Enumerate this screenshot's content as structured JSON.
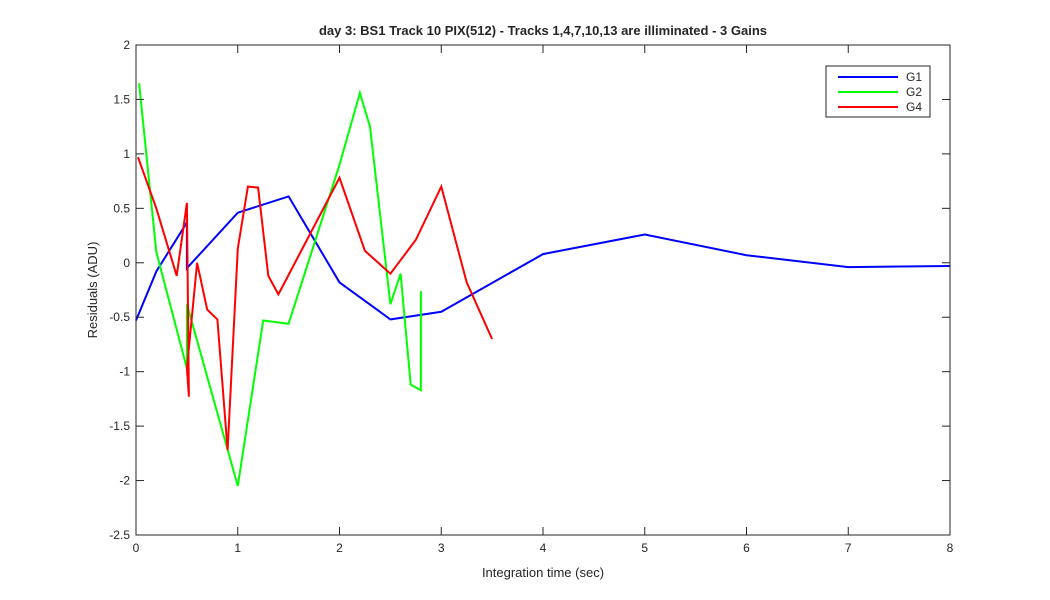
{
  "chart_data": {
    "type": "line",
    "title": "day 3: BS1  Track 10 PIX(512) - Tracks 1,4,7,10,13 are illiminated - 3 Gains",
    "xlabel": "Integration time (sec)",
    "ylabel": "Residuals (ADU)",
    "xlim": [
      0,
      8
    ],
    "ylim": [
      -2.5,
      2
    ],
    "xticks": [
      0,
      1,
      2,
      3,
      4,
      5,
      6,
      7,
      8
    ],
    "yticks": [
      -2.5,
      -2,
      -1.5,
      -1,
      -0.5,
      0,
      0.5,
      1,
      1.5,
      2
    ],
    "xtick_labels": [
      "0",
      "1",
      "2",
      "3",
      "4",
      "5",
      "6",
      "7",
      "8"
    ],
    "ytick_labels": [
      "-2.5",
      "-2",
      "-1.5",
      "-1",
      "-0.5",
      "0",
      "0.5",
      "1",
      "1.5",
      "2"
    ],
    "grid": false,
    "legend_position": "top-right",
    "series": [
      {
        "name": "G1",
        "color": "#0000ff",
        "x": [
          0,
          0.2,
          0.5,
          0.5,
          1,
          1.5,
          2,
          2.5,
          3,
          4,
          5,
          6,
          7,
          8
        ],
        "y": [
          -0.53,
          -0.08,
          0.37,
          -0.05,
          0.46,
          0.61,
          -0.18,
          -0.52,
          -0.45,
          0.08,
          0.26,
          0.07,
          -0.04,
          -0.03
        ]
      },
      {
        "name": "G2",
        "color": "#00ff00",
        "x": [
          0.03,
          0.2,
          0.5,
          0.5,
          1,
          1.25,
          1.5,
          2,
          2.2,
          2.3,
          2.5,
          2.6,
          2.7,
          2.8,
          2.8
        ],
        "y": [
          1.65,
          0.1,
          -0.97,
          -0.38,
          -2.05,
          -0.53,
          -0.56,
          0.9,
          1.56,
          1.25,
          -0.38,
          -0.1,
          -1.12,
          -1.17,
          -0.26
        ]
      },
      {
        "name": "G4",
        "color": "#ff0000",
        "x": [
          0.02,
          0.2,
          0.4,
          0.5,
          0.52,
          0.5,
          0.6,
          0.7,
          0.8,
          0.9,
          1,
          1.1,
          1.2,
          1.3,
          1.4,
          2,
          2.25,
          2.5,
          2.75,
          3,
          3.25,
          3.5
        ],
        "y": [
          0.97,
          0.5,
          -0.12,
          0.55,
          -1.23,
          -0.97,
          0,
          -0.43,
          -0.52,
          -1.72,
          0.13,
          0.7,
          0.69,
          -0.12,
          -0.29,
          0.78,
          0.11,
          -0.1,
          0.21,
          0.7,
          -0.18,
          -0.7
        ]
      }
    ]
  }
}
